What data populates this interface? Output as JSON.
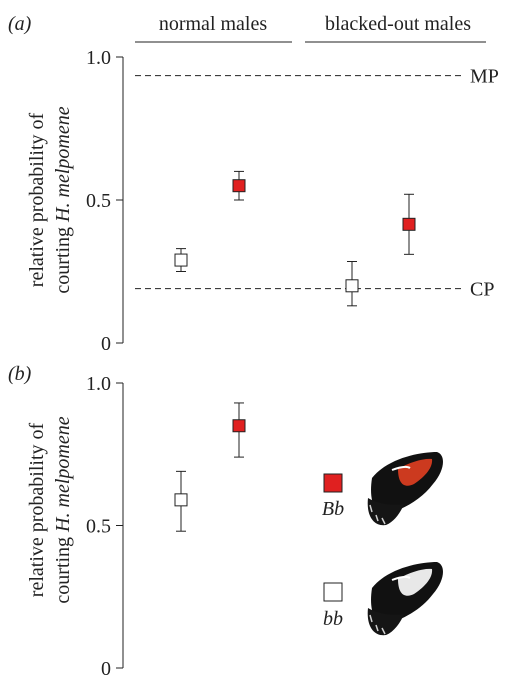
{
  "chart_data": [
    {
      "panel_label": "(a)",
      "type": "scatter",
      "ylabel_line1": "relative probability of",
      "ylabel_line2_plain": "courting ",
      "ylabel_line2_italic": "H. melpomene",
      "ylim": [
        0,
        1.0
      ],
      "yticks": [
        {
          "value": 0,
          "label": "0"
        },
        {
          "value": 0.5,
          "label": "0.5"
        },
        {
          "value": 1.0,
          "label": "1.0"
        }
      ],
      "group_labels": [
        "normal males",
        "blacked-out males"
      ],
      "reference_lines": [
        {
          "label": "MP",
          "y": 0.935
        },
        {
          "label": "CP",
          "y": 0.19
        }
      ],
      "points": [
        {
          "group": "normal males",
          "genotype": "bb",
          "y": 0.29,
          "lower": 0.25,
          "upper": 0.33
        },
        {
          "group": "normal males",
          "genotype": "Bb",
          "y": 0.55,
          "lower": 0.5,
          "upper": 0.6
        },
        {
          "group": "blacked-out males",
          "genotype": "bb",
          "y": 0.2,
          "lower": 0.13,
          "upper": 0.285
        },
        {
          "group": "blacked-out males",
          "genotype": "Bb",
          "y": 0.415,
          "lower": 0.31,
          "upper": 0.52
        }
      ]
    },
    {
      "panel_label": "(b)",
      "type": "scatter",
      "ylabel_line1": "relative probability of",
      "ylabel_line2_plain": "courting ",
      "ylabel_line2_italic": "H. melpomene",
      "ylim": [
        0,
        1.0
      ],
      "yticks": [
        {
          "value": 0,
          "label": "0"
        },
        {
          "value": 0.5,
          "label": "0.5"
        },
        {
          "value": 1.0,
          "label": "1.0"
        }
      ],
      "points": [
        {
          "genotype": "bb",
          "y": 0.59,
          "lower": 0.48,
          "upper": 0.69
        },
        {
          "genotype": "Bb",
          "y": 0.85,
          "lower": 0.74,
          "upper": 0.93
        }
      ],
      "legend": [
        {
          "genotype": "Bb",
          "label": "Bb",
          "wing": "black with red band"
        },
        {
          "genotype": "bb",
          "label": "bb",
          "wing": "black with white band"
        }
      ]
    }
  ],
  "colors": {
    "Bb": "#e02020",
    "bb": "#ffffff",
    "marker_edge": "#222222",
    "axis": "#222222"
  }
}
